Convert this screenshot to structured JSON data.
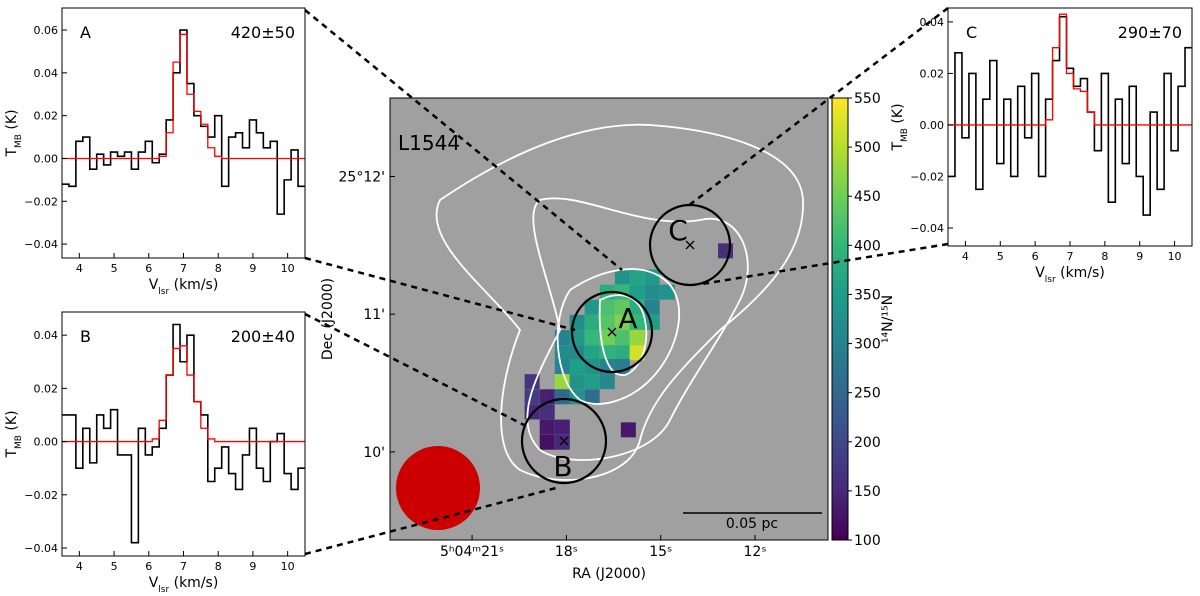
{
  "chart_data": [
    {
      "type": "step",
      "label": "A",
      "value_text": "420±50",
      "xlabel": [
        "V",
        "lsr",
        " (km/s)"
      ],
      "ylabel": [
        "T",
        "MB",
        " (K)"
      ],
      "xlim": [
        3.5,
        10.5
      ],
      "ylim": [
        -0.0465,
        0.0703
      ],
      "xticks": [
        4,
        5,
        6,
        7,
        8,
        9,
        10
      ],
      "yticks": [
        {
          "value": -0.04,
          "label": "−0.04"
        },
        {
          "value": -0.02,
          "label": "−0.02"
        },
        {
          "value": 0,
          "label": "0.00"
        },
        {
          "value": 0.02,
          "label": "0.02"
        },
        {
          "value": 0.04,
          "label": "0.04"
        },
        {
          "value": 0.06,
          "label": "0.06"
        }
      ],
      "x": [
        3.6,
        3.8,
        4.0,
        4.2,
        4.4,
        4.6,
        4.8,
        5.0,
        5.2,
        5.4,
        5.6,
        5.8,
        6.0,
        6.2,
        6.4,
        6.6,
        6.8,
        7.0,
        7.2,
        7.4,
        7.6,
        7.8,
        8.0,
        8.2,
        8.4,
        8.6,
        8.8,
        9.0,
        9.2,
        9.4,
        9.6,
        9.8,
        10.0,
        10.2,
        10.4
      ],
      "series": [
        {
          "name": "observed",
          "color": "#000000",
          "values": [
            -0.012,
            -0.013,
            0.008,
            0.01,
            -0.005,
            0.002,
            -0.003,
            0.003,
            0.001,
            0.003,
            -0.005,
            0.003,
            0.008,
            -0.002,
            0.002,
            0.018,
            0.04,
            0.06,
            0.035,
            0.02,
            0.015,
            0.01,
            0.02,
            -0.013,
            0.01,
            0.012,
            0.005,
            0.018,
            0.012,
            0.005,
            0.008,
            -0.026,
            -0.01,
            0.004,
            -0.013
          ]
        },
        {
          "name": "fit",
          "color": "#ff0000",
          "values": [
            0,
            0,
            0,
            0,
            0,
            0,
            0,
            0,
            0,
            0,
            0,
            0,
            0,
            0,
            0.001,
            0.012,
            0.045,
            0.058,
            0.03,
            0.022,
            0.016,
            0.005,
            0.001,
            0,
            0,
            0,
            0,
            0,
            0,
            0,
            0,
            0,
            0,
            0,
            0
          ]
        }
      ]
    },
    {
      "type": "step",
      "label": "B",
      "value_text": "200±40",
      "xlabel": [
        "V",
        "lsr",
        " (km/s)"
      ],
      "ylabel": [
        "T",
        "MB",
        " (K)"
      ],
      "xlim": [
        3.5,
        10.5
      ],
      "ylim": [
        -0.043,
        0.0487
      ],
      "xticks": [
        4,
        5,
        6,
        7,
        8,
        9,
        10
      ],
      "yticks": [
        {
          "value": -0.04,
          "label": "−0.04"
        },
        {
          "value": -0.02,
          "label": "−0.02"
        },
        {
          "value": 0,
          "label": "0.00"
        },
        {
          "value": 0.02,
          "label": "0.02"
        },
        {
          "value": 0.04,
          "label": "0.04"
        }
      ],
      "x": [
        3.6,
        3.8,
        4.0,
        4.2,
        4.4,
        4.6,
        4.8,
        5.0,
        5.2,
        5.4,
        5.6,
        5.8,
        6.0,
        6.2,
        6.4,
        6.6,
        6.8,
        7.0,
        7.2,
        7.4,
        7.6,
        7.8,
        8.0,
        8.2,
        8.4,
        8.6,
        8.8,
        9.0,
        9.2,
        9.4,
        9.6,
        9.8,
        10.0,
        10.2,
        10.4
      ],
      "series": [
        {
          "name": "observed",
          "color": "#000000",
          "values": [
            0.01,
            0.01,
            -0.01,
            0.005,
            -0.008,
            0.01,
            0.005,
            0.012,
            -0.005,
            -0.005,
            -0.038,
            0.005,
            -0.005,
            -0.002,
            0.005,
            0.025,
            0.044,
            0.03,
            0.04,
            0.015,
            0.01,
            -0.015,
            -0.01,
            -0.002,
            -0.012,
            -0.018,
            -0.005,
            0.005,
            -0.01,
            -0.015,
            0.0,
            0.003,
            -0.012,
            -0.018,
            -0.01
          ]
        },
        {
          "name": "fit",
          "color": "#ff0000",
          "values": [
            0,
            0,
            0,
            0,
            0,
            0,
            0,
            0,
            0,
            0,
            0,
            0,
            0,
            0.001,
            0.008,
            0.025,
            0.035,
            0.036,
            0.025,
            0.015,
            0.005,
            0.001,
            0,
            0,
            0,
            0,
            0,
            0,
            0,
            0,
            0,
            0,
            0,
            0,
            0
          ]
        }
      ]
    },
    {
      "type": "heatmap",
      "title": "L1544",
      "xlabel": "RA (J2000)",
      "ylabel": "Dec (J2000)",
      "clabel": "¹⁴N/¹⁵N",
      "annotations": [
        "A",
        "B",
        "C",
        "0.05 pc"
      ],
      "xlim": [
        23.61,
        9.68
      ],
      "ylim": [
        9.36,
        12.57
      ],
      "xticks": [
        {
          "value": 21,
          "label": "5ʰ04ᵐ21ˢ"
        },
        {
          "value": 18,
          "label": "18ˢ"
        },
        {
          "value": 15,
          "label": "15ˢ"
        },
        {
          "value": 12,
          "label": "12ˢ"
        }
      ],
      "yticks": [
        {
          "value": 10,
          "label": "10'"
        },
        {
          "value": 11,
          "label": "11'"
        },
        {
          "value": 12,
          "label": "25°12'"
        }
      ],
      "colormap": "viridis",
      "clim": [
        100,
        550
      ],
      "cticks": [
        100,
        150,
        200,
        250,
        300,
        350,
        400,
        450,
        500,
        550
      ],
      "x": [
        16.22,
        15.75,
        15.27,
        16.7,
        16.22,
        15.75,
        15.27,
        14.79,
        17.18,
        16.7,
        16.22,
        15.75,
        15.27,
        17.66,
        17.18,
        16.7,
        16.22,
        15.75,
        15.27,
        18.13,
        17.66,
        17.18,
        16.7,
        16.22,
        15.75,
        18.13,
        17.66,
        17.18,
        16.7,
        16.22,
        15.75,
        18.13,
        17.66,
        17.18,
        16.7,
        16.22,
        19.09,
        18.13,
        17.66,
        17.18,
        16.7,
        19.09,
        18.61,
        18.13,
        17.66,
        17.18,
        19.09,
        18.61,
        18.61,
        18.13,
        16.03,
        18.61,
        18.13,
        12.94
      ],
      "y": [
        11.27,
        11.27,
        11.27,
        11.16,
        11.16,
        11.16,
        11.16,
        11.16,
        11.05,
        11.05,
        11.05,
        11.05,
        11.05,
        10.94,
        10.94,
        10.94,
        10.94,
        10.94,
        10.94,
        10.83,
        10.83,
        10.83,
        10.83,
        10.83,
        10.83,
        10.72,
        10.72,
        10.72,
        10.72,
        10.72,
        10.72,
        10.62,
        10.62,
        10.62,
        10.62,
        10.62,
        10.51,
        10.51,
        10.51,
        10.51,
        10.51,
        10.4,
        10.4,
        10.4,
        10.4,
        10.4,
        10.29,
        10.29,
        10.18,
        10.18,
        10.16,
        10.07,
        10.07,
        11.46
      ],
      "values": [
        330,
        360,
        340,
        380,
        400,
        350,
        320,
        330,
        340,
        420,
        440,
        380,
        300,
        320,
        380,
        430,
        460,
        400,
        350,
        300,
        340,
        400,
        450,
        420,
        480,
        320,
        310,
        360,
        390,
        380,
        520,
        300,
        350,
        330,
        300,
        290,
        170,
        480,
        330,
        350,
        310,
        180,
        140,
        250,
        330,
        260,
        150,
        160,
        130,
        140,
        130,
        120,
        150,
        160
      ]
    },
    {
      "type": "step",
      "label": "C",
      "value_text": "290±70",
      "xlabel": [
        "V",
        "lsr",
        " (km/s)"
      ],
      "ylabel": [
        "T",
        "MB",
        " (K)"
      ],
      "xlim": [
        3.5,
        10.5
      ],
      "ylim": [
        -0.047,
        0.0454
      ],
      "xticks": [
        4,
        5,
        6,
        7,
        8,
        9,
        10
      ],
      "yticks": [
        {
          "value": -0.04,
          "label": "−0.04"
        },
        {
          "value": -0.02,
          "label": "−0.02"
        },
        {
          "value": 0,
          "label": "0.00"
        },
        {
          "value": 0.02,
          "label": "0.02"
        },
        {
          "value": 0.04,
          "label": "0.04"
        }
      ],
      "x": [
        3.6,
        3.8,
        4.0,
        4.2,
        4.4,
        4.6,
        4.8,
        5.0,
        5.2,
        5.4,
        5.6,
        5.8,
        6.0,
        6.2,
        6.4,
        6.6,
        6.8,
        7.0,
        7.2,
        7.4,
        7.6,
        7.8,
        8.0,
        8.2,
        8.4,
        8.6,
        8.8,
        9.0,
        9.2,
        9.4,
        9.6,
        9.8,
        10.0,
        10.2,
        10.4
      ],
      "series": [
        {
          "name": "observed",
          "color": "#000000",
          "values": [
            -0.02,
            0.028,
            -0.005,
            0.02,
            -0.025,
            0.01,
            0.025,
            -0.015,
            0.01,
            -0.02,
            0.015,
            -0.005,
            0.02,
            -0.02,
            0.01,
            0.025,
            0.042,
            0.022,
            0.015,
            0.018,
            0.005,
            -0.01,
            0.02,
            -0.03,
            0.01,
            -0.015,
            0.015,
            -0.02,
            -0.035,
            0.005,
            -0.025,
            0.02,
            -0.01,
            0.015,
            0.03
          ]
        },
        {
          "name": "fit",
          "color": "#ff0000",
          "values": [
            0,
            0,
            0,
            0,
            0,
            0,
            0,
            0,
            0,
            0,
            0,
            0,
            0,
            0,
            0.002,
            0.03,
            0.043,
            0.02,
            0.014,
            0.013,
            0.005,
            0,
            0,
            0,
            0,
            0,
            0,
            0,
            0,
            0,
            0,
            0,
            0,
            0,
            0
          ]
        }
      ]
    }
  ]
}
